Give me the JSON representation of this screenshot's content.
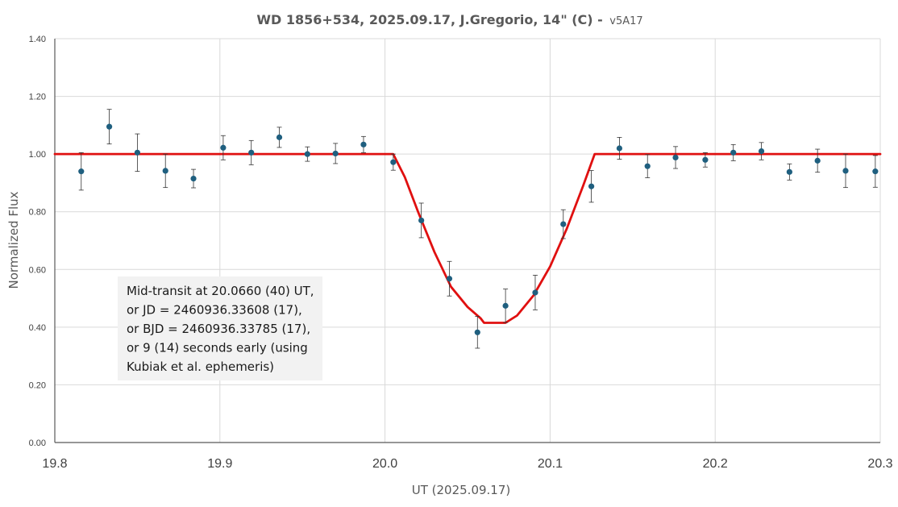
{
  "chart_data": {
    "type": "scatter",
    "title": "WD 1856+534, 2025.09.17, J.Gregorio, 14\" (C) -",
    "subtitle": "v5A17",
    "xlabel": "UT (2025.09.17)",
    "ylabel": "Normalized Flux",
    "xlim": [
      19.8,
      20.3
    ],
    "ylim": [
      0.0,
      1.4
    ],
    "x_ticks": [
      19.8,
      19.9,
      20.0,
      20.1,
      20.2,
      20.3
    ],
    "x_tick_labels": [
      "19.8",
      "19.9",
      "20.0",
      "20.1",
      "20.2",
      "20.3"
    ],
    "y_ticks": [
      0,
      0.2,
      0.4,
      0.6,
      0.8,
      1.0,
      1.2,
      1.4
    ],
    "y_tick_labels": [
      "0.00",
      "0.20",
      "0.40",
      "0.60",
      "0.80",
      "1.00",
      "1.20",
      "1.40"
    ],
    "grid": true,
    "series": [
      {
        "type": "scatter",
        "color": "#1f5f7f",
        "points": [
          {
            "x": 19.816,
            "y": 0.94,
            "err": 0.065
          },
          {
            "x": 19.833,
            "y": 1.095,
            "err": 0.06
          },
          {
            "x": 19.85,
            "y": 1.005,
            "err": 0.065
          },
          {
            "x": 19.867,
            "y": 0.942,
            "err": 0.058
          },
          {
            "x": 19.884,
            "y": 0.915,
            "err": 0.032
          },
          {
            "x": 19.902,
            "y": 1.022,
            "err": 0.042
          },
          {
            "x": 19.919,
            "y": 1.005,
            "err": 0.042
          },
          {
            "x": 19.936,
            "y": 1.058,
            "err": 0.035
          },
          {
            "x": 19.953,
            "y": 1.0,
            "err": 0.025
          },
          {
            "x": 19.97,
            "y": 1.002,
            "err": 0.035
          },
          {
            "x": 19.987,
            "y": 1.033,
            "err": 0.028
          },
          {
            "x": 20.005,
            "y": 0.972,
            "err": 0.028
          },
          {
            "x": 20.022,
            "y": 0.77,
            "err": 0.06
          },
          {
            "x": 20.039,
            "y": 0.568,
            "err": 0.06
          },
          {
            "x": 20.056,
            "y": 0.382,
            "err": 0.055
          },
          {
            "x": 20.073,
            "y": 0.474,
            "err": 0.058
          },
          {
            "x": 20.091,
            "y": 0.52,
            "err": 0.06
          },
          {
            "x": 20.108,
            "y": 0.757,
            "err": 0.05
          },
          {
            "x": 20.125,
            "y": 0.888,
            "err": 0.055
          },
          {
            "x": 20.142,
            "y": 1.02,
            "err": 0.038
          },
          {
            "x": 20.159,
            "y": 0.958,
            "err": 0.04
          },
          {
            "x": 20.176,
            "y": 0.988,
            "err": 0.038
          },
          {
            "x": 20.194,
            "y": 0.98,
            "err": 0.025
          },
          {
            "x": 20.211,
            "y": 1.005,
            "err": 0.028
          },
          {
            "x": 20.228,
            "y": 1.01,
            "err": 0.03
          },
          {
            "x": 20.245,
            "y": 0.938,
            "err": 0.028
          },
          {
            "x": 20.262,
            "y": 0.977,
            "err": 0.04
          },
          {
            "x": 20.279,
            "y": 0.942,
            "err": 0.058
          },
          {
            "x": 20.297,
            "y": 0.94,
            "err": 0.055
          }
        ]
      },
      {
        "type": "line",
        "color": "#e01010",
        "points": [
          {
            "x": 19.8,
            "y": 1.0
          },
          {
            "x": 20.005,
            "y": 1.0
          },
          {
            "x": 20.012,
            "y": 0.92
          },
          {
            "x": 20.02,
            "y": 0.8
          },
          {
            "x": 20.03,
            "y": 0.66
          },
          {
            "x": 20.04,
            "y": 0.54
          },
          {
            "x": 20.05,
            "y": 0.47
          },
          {
            "x": 20.058,
            "y": 0.43
          },
          {
            "x": 20.06,
            "y": 0.415
          },
          {
            "x": 20.073,
            "y": 0.415
          },
          {
            "x": 20.08,
            "y": 0.44
          },
          {
            "x": 20.09,
            "y": 0.51
          },
          {
            "x": 20.1,
            "y": 0.61
          },
          {
            "x": 20.11,
            "y": 0.74
          },
          {
            "x": 20.12,
            "y": 0.89
          },
          {
            "x": 20.127,
            "y": 1.0
          },
          {
            "x": 20.3,
            "y": 1.0
          }
        ]
      }
    ],
    "annotation": {
      "lines": [
        "Mid-transit at 20.0660 (40) UT,",
        "or    JD = 2460936.33608 (17),",
        "or BJD = 2460936.33785 (17),",
        "or 9 (14) seconds early (using",
        "Kubiak et al. ephemeris)"
      ]
    }
  }
}
